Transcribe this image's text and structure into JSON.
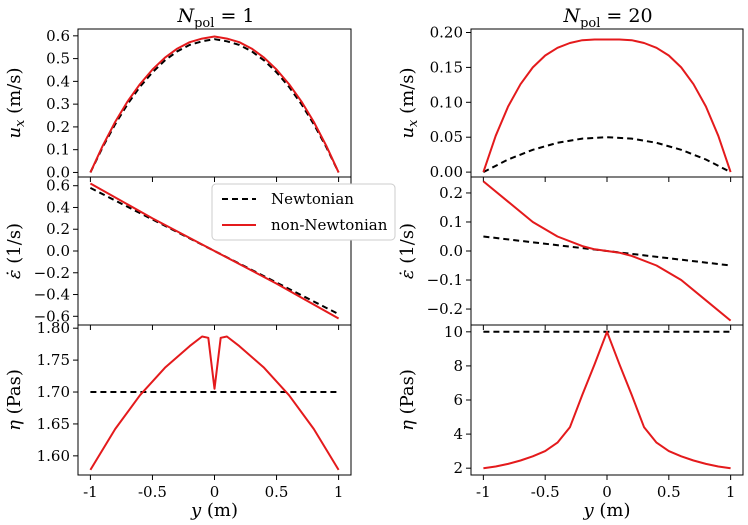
{
  "columns": [
    {
      "title_main": "N",
      "title_sub": "pol",
      "title_rest": " = 1"
    },
    {
      "title_main": "N",
      "title_sub": "pol",
      "title_rest": " = 20"
    }
  ],
  "legend": {
    "entries": [
      {
        "label": "Newtonian",
        "color": "#000000",
        "dash": "6,4"
      },
      {
        "label": "non-Newtonian",
        "color": "#e41a1c",
        "dash": ""
      }
    ]
  },
  "chart_data": [
    {
      "type": "line",
      "title": "N_pol = 1",
      "ylabel": "u_x (m/s)",
      "xlabel": "",
      "xlim": [
        -1.1,
        1.1
      ],
      "ylim": [
        -0.02,
        0.63
      ],
      "yticks": [
        0.0,
        0.1,
        0.2,
        0.3,
        0.4,
        0.5,
        0.6
      ],
      "ytick_labels": [
        "0.0",
        "0.1",
        "0.2",
        "0.3",
        "0.4",
        "0.5",
        "0.6"
      ],
      "xticks": [
        -1,
        -0.5,
        0,
        0.5,
        1
      ],
      "xtick_labels": [],
      "series": [
        {
          "name": "Newtonian",
          "color": "#000000",
          "dash": "6,4",
          "x": [
            -1,
            -0.9,
            -0.8,
            -0.7,
            -0.6,
            -0.5,
            -0.4,
            -0.3,
            -0.2,
            -0.1,
            0,
            0.1,
            0.2,
            0.3,
            0.4,
            0.5,
            0.6,
            0.7,
            0.8,
            0.9,
            1
          ],
          "y": [
            0,
            0.112,
            0.212,
            0.3,
            0.376,
            0.44,
            0.492,
            0.532,
            0.56,
            0.576,
            0.585,
            0.576,
            0.56,
            0.532,
            0.492,
            0.44,
            0.376,
            0.3,
            0.212,
            0.112,
            0
          ]
        },
        {
          "name": "non-Newtonian",
          "color": "#e41a1c",
          "dash": "",
          "x": [
            -1,
            -0.9,
            -0.8,
            -0.7,
            -0.6,
            -0.5,
            -0.4,
            -0.3,
            -0.2,
            -0.1,
            0,
            0.1,
            0.2,
            0.3,
            0.4,
            0.5,
            0.6,
            0.7,
            0.8,
            0.9,
            1
          ],
          "y": [
            0,
            0.118,
            0.222,
            0.312,
            0.388,
            0.452,
            0.504,
            0.544,
            0.572,
            0.588,
            0.597,
            0.588,
            0.572,
            0.544,
            0.504,
            0.452,
            0.388,
            0.312,
            0.222,
            0.118,
            0
          ]
        }
      ]
    },
    {
      "type": "line",
      "title": "",
      "ylabel": "ε̇ (1/s)",
      "xlabel": "",
      "xlim": [
        -1.1,
        1.1
      ],
      "ylim": [
        -0.68,
        0.68
      ],
      "yticks": [
        -0.6,
        -0.4,
        -0.2,
        0.0,
        0.2,
        0.4,
        0.6
      ],
      "ytick_labels": [
        "−0.6",
        "−0.4",
        "−0.2",
        "0.0",
        "0.2",
        "0.4",
        "0.6"
      ],
      "xticks": [
        -1,
        -0.5,
        0,
        0.5,
        1
      ],
      "xtick_labels": [],
      "series": [
        {
          "name": "Newtonian",
          "color": "#000000",
          "dash": "6,4",
          "x": [
            -1,
            1
          ],
          "y": [
            0.58,
            -0.58
          ]
        },
        {
          "name": "non-Newtonian",
          "color": "#e41a1c",
          "dash": "",
          "x": [
            -1,
            -0.5,
            0,
            0.5,
            1
          ],
          "y": [
            0.62,
            0.3,
            0,
            -0.3,
            -0.62
          ]
        }
      ]
    },
    {
      "type": "line",
      "title": "",
      "ylabel": "η (Pas)",
      "xlabel": "y (m)",
      "xlim": [
        -1.1,
        1.1
      ],
      "ylim": [
        1.57,
        1.805
      ],
      "yticks": [
        1.6,
        1.65,
        1.7,
        1.75,
        1.8
      ],
      "ytick_labels": [
        "1.60",
        "1.65",
        "1.70",
        "1.75",
        "1.80"
      ],
      "xticks": [
        -1,
        -0.5,
        0,
        0.5,
        1
      ],
      "xtick_labels": [
        "-1",
        "-0.5",
        "0",
        "0.5",
        "1"
      ],
      "series": [
        {
          "name": "Newtonian",
          "color": "#000000",
          "dash": "6,4",
          "x": [
            -1,
            1
          ],
          "y": [
            1.7,
            1.7
          ]
        },
        {
          "name": "non-Newtonian",
          "color": "#e41a1c",
          "dash": "",
          "x": [
            -1,
            -0.8,
            -0.6,
            -0.4,
            -0.2,
            -0.1,
            -0.05,
            0,
            0.05,
            0.1,
            0.2,
            0.4,
            0.6,
            0.8,
            1
          ],
          "y": [
            1.578,
            1.642,
            1.695,
            1.738,
            1.772,
            1.787,
            1.785,
            1.705,
            1.785,
            1.787,
            1.772,
            1.738,
            1.695,
            1.642,
            1.578
          ]
        }
      ]
    },
    {
      "type": "line",
      "title": "N_pol = 20",
      "ylabel": "u_x (m/s)",
      "xlabel": "",
      "xlim": [
        -1.1,
        1.1
      ],
      "ylim": [
        -0.007,
        0.205
      ],
      "yticks": [
        0.0,
        0.05,
        0.1,
        0.15,
        0.2
      ],
      "ytick_labels": [
        "0.00",
        "0.05",
        "0.10",
        "0.15",
        "0.20"
      ],
      "xticks": [
        -1,
        -0.5,
        0,
        0.5,
        1
      ],
      "xtick_labels": [],
      "series": [
        {
          "name": "Newtonian",
          "color": "#000000",
          "dash": "6,4",
          "x": [
            -1,
            -0.8,
            -0.6,
            -0.4,
            -0.2,
            0,
            0.2,
            0.4,
            0.6,
            0.8,
            1
          ],
          "y": [
            0,
            0.018,
            0.032,
            0.042,
            0.048,
            0.05,
            0.048,
            0.042,
            0.032,
            0.018,
            0
          ]
        },
        {
          "name": "non-Newtonian",
          "color": "#e41a1c",
          "dash": "",
          "x": [
            -1,
            -0.9,
            -0.8,
            -0.7,
            -0.6,
            -0.5,
            -0.4,
            -0.3,
            -0.2,
            -0.1,
            0,
            0.1,
            0.2,
            0.3,
            0.4,
            0.5,
            0.6,
            0.7,
            0.8,
            0.9,
            1
          ],
          "y": [
            0,
            0.052,
            0.094,
            0.126,
            0.15,
            0.167,
            0.178,
            0.185,
            0.189,
            0.19,
            0.19,
            0.19,
            0.189,
            0.185,
            0.178,
            0.167,
            0.15,
            0.126,
            0.094,
            0.052,
            0
          ]
        }
      ]
    },
    {
      "type": "line",
      "title": "",
      "ylabel": "ε̇ (1/s)",
      "xlabel": "",
      "xlim": [
        -1.1,
        1.1
      ],
      "ylim": [
        -0.255,
        0.255
      ],
      "yticks": [
        -0.2,
        -0.1,
        0.0,
        0.1,
        0.2
      ],
      "ytick_labels": [
        "−0.2",
        "−0.1",
        "0.0",
        "0.1",
        "0.2"
      ],
      "xticks": [
        -1,
        -0.5,
        0,
        0.5,
        1
      ],
      "xtick_labels": [],
      "series": [
        {
          "name": "Newtonian",
          "color": "#000000",
          "dash": "6,4",
          "x": [
            -1,
            1
          ],
          "y": [
            0.05,
            -0.05
          ]
        },
        {
          "name": "non-Newtonian",
          "color": "#e41a1c",
          "dash": "",
          "x": [
            -1,
            -0.8,
            -0.6,
            -0.4,
            -0.2,
            -0.1,
            0,
            0.1,
            0.2,
            0.4,
            0.6,
            0.8,
            1
          ],
          "y": [
            0.24,
            0.17,
            0.1,
            0.05,
            0.017,
            0.006,
            0,
            -0.006,
            -0.017,
            -0.05,
            -0.1,
            -0.17,
            -0.24
          ]
        }
      ]
    },
    {
      "type": "line",
      "title": "",
      "ylabel": "η (Pas)",
      "xlabel": "y (m)",
      "xlim": [
        -1.1,
        1.1
      ],
      "ylim": [
        1.6,
        10.4
      ],
      "yticks": [
        2,
        4,
        6,
        8,
        10
      ],
      "ytick_labels": [
        "2",
        "4",
        "6",
        "8",
        "10"
      ],
      "xticks": [
        -1,
        -0.5,
        0,
        0.5,
        1
      ],
      "xtick_labels": [
        "-1",
        "-0.5",
        "0",
        "0.5",
        "1"
      ],
      "series": [
        {
          "name": "Newtonian",
          "color": "#000000",
          "dash": "6,4",
          "x": [
            -1,
            1
          ],
          "y": [
            10,
            10
          ]
        },
        {
          "name": "non-Newtonian",
          "color": "#e41a1c",
          "dash": "",
          "x": [
            -1,
            -0.9,
            -0.8,
            -0.7,
            -0.6,
            -0.5,
            -0.4,
            -0.3,
            -0.2,
            -0.1,
            0,
            0.1,
            0.2,
            0.3,
            0.4,
            0.5,
            0.6,
            0.7,
            0.8,
            0.9,
            1
          ],
          "y": [
            2.0,
            2.1,
            2.25,
            2.45,
            2.7,
            3.0,
            3.5,
            4.4,
            6.3,
            8.1,
            10.0,
            8.1,
            6.3,
            4.4,
            3.5,
            3.0,
            2.7,
            2.45,
            2.25,
            2.1,
            2.0
          ]
        }
      ]
    }
  ]
}
